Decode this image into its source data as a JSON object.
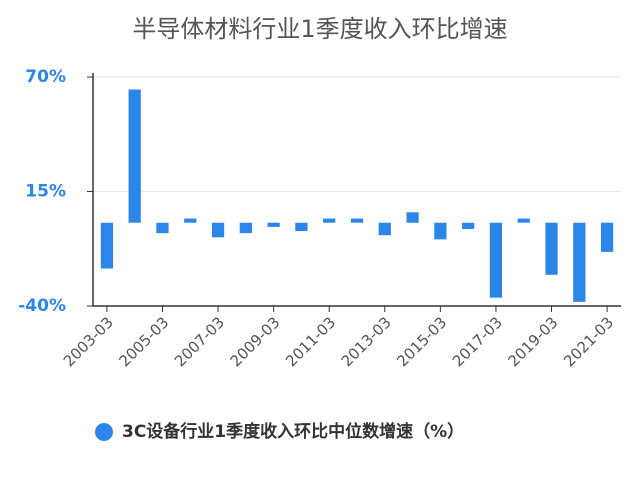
{
  "chart_data": {
    "type": "bar",
    "title": "半导体材料行业1季度收入环比增速",
    "categories": [
      "2003-03",
      null,
      "2005-03",
      null,
      "2007-03",
      null,
      "2009-03",
      null,
      "2011-03",
      null,
      "2013-03",
      null,
      "2015-03",
      null,
      "2017-03",
      null,
      "2019-03",
      null,
      "2021-03"
    ],
    "series": [
      {
        "name": "3C设备行业1季度收入环比中位数增速（%）",
        "color": "#2a86e8",
        "values": [
          -22,
          64,
          -5,
          2,
          -7,
          -5,
          -2,
          -4,
          2,
          2,
          -6,
          5,
          -8,
          -3,
          -36,
          2,
          -25,
          -38,
          -14
        ]
      }
    ],
    "ylim": [
      -40,
      70
    ],
    "yticks": [
      {
        "value": -40,
        "label": "-40%"
      },
      {
        "value": 15,
        "label": "15%"
      },
      {
        "value": 70,
        "label": "70%"
      }
    ],
    "grid": true,
    "legend": "bottom"
  }
}
